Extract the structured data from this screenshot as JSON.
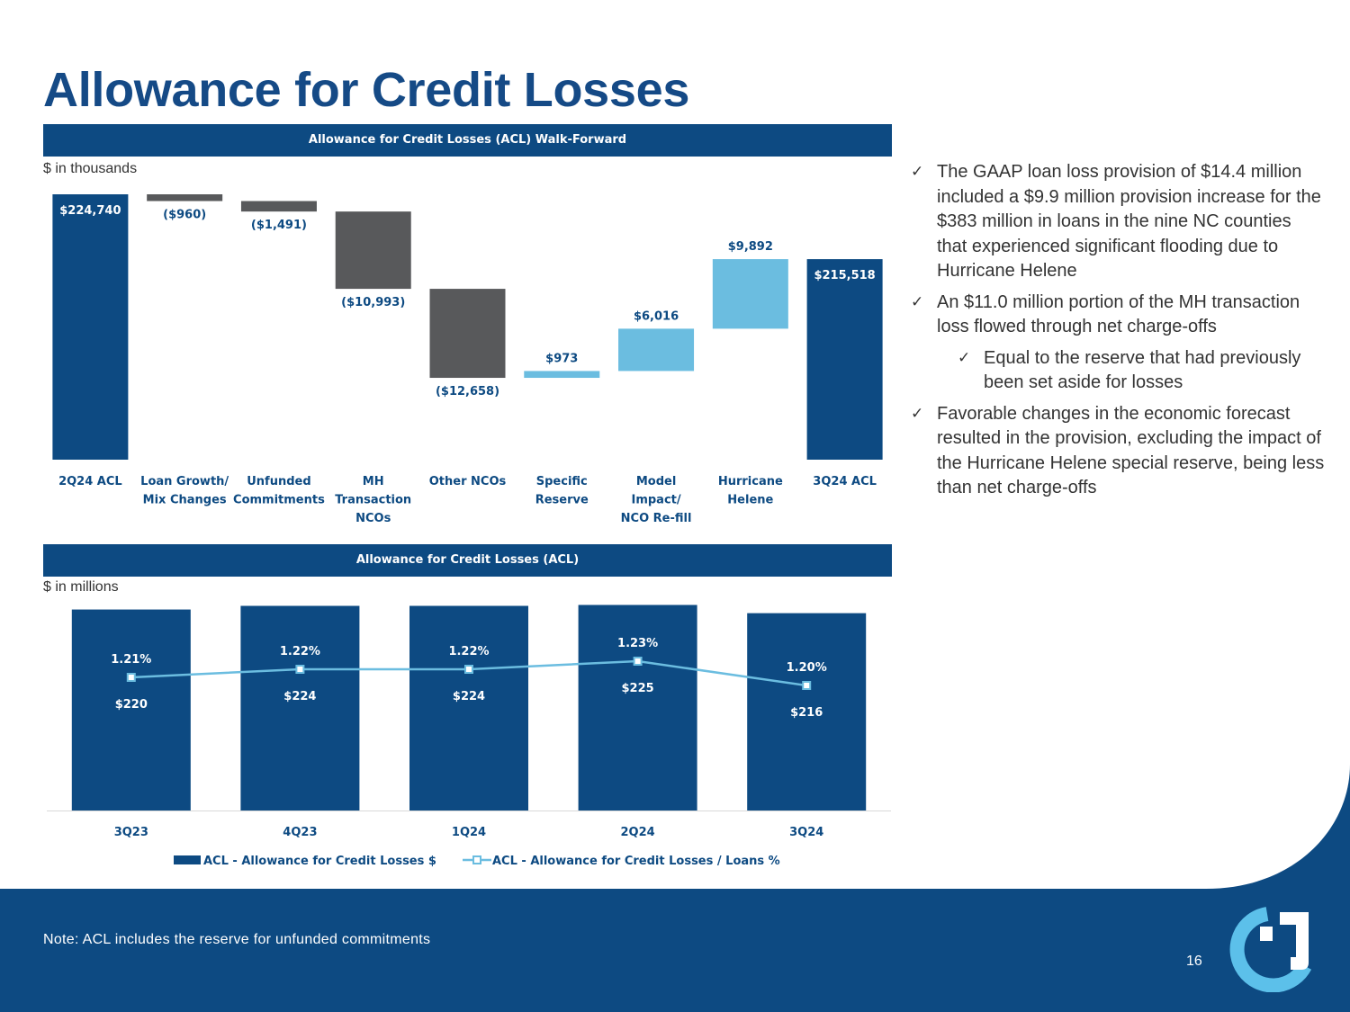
{
  "page": {
    "title": "Allowance for Credit Losses",
    "note": "Note: ACL includes the reserve for unfunded commitments",
    "page_number": "16"
  },
  "bullets": [
    {
      "level": 1,
      "text": "The GAAP loan loss provision of $14.4 million included a $9.9 million provision increase for the $383 million in loans in the nine NC counties that experienced significant flooding due to Hurricane Helene"
    },
    {
      "level": 1,
      "text": "An $11.0 million portion of the MH transaction loss flowed through net charge-offs"
    },
    {
      "level": 2,
      "text": "Equal to the reserve that had previously been set aside for losses"
    },
    {
      "level": 1,
      "text": "Favorable changes in the economic forecast resulted in the provision, excluding the impact of the Hurricane Helene special reserve, being less than net charge-offs"
    }
  ],
  "colors": {
    "brand_navy": "#0d4a82",
    "negative_gray": "#58595b",
    "positive_light_blue": "#6bbde0",
    "line_light_blue": "#6bbde0",
    "logo_cyan": "#5cc0ea"
  },
  "icons": {
    "bullet": "checkmark-icon",
    "logo": "company-logo"
  },
  "chart_data": [
    {
      "type": "waterfall",
      "title": "Allowance for Credit Losses (ACL) Walk-Forward",
      "units_label": "$ in thousands",
      "categories": [
        "2Q24 ACL",
        "Loan Growth/ Mix Changes",
        "Unfunded Commitments",
        "MH Transaction NCOs",
        "Other NCOs",
        "Specific Reserve",
        "Model Impact/ NCO Re-fill",
        "Hurricane Helene",
        "3Q24 ACL"
      ],
      "values": [
        224740,
        -960,
        -1491,
        -10993,
        -12658,
        973,
        6016,
        9892,
        215518
      ],
      "kinds": [
        "total",
        "delta",
        "delta",
        "delta",
        "delta",
        "delta",
        "delta",
        "delta",
        "total"
      ],
      "data_labels": [
        "$224,740",
        "($960)",
        "($1,491)",
        "($10,993)",
        "($12,658)",
        "$973",
        "$6,016",
        "$9,892",
        "$215,518"
      ]
    },
    {
      "type": "bar+line",
      "title": "Allowance for Credit Losses (ACL)",
      "units_label": "$ in millions",
      "categories": [
        "3Q23",
        "4Q23",
        "1Q24",
        "2Q24",
        "3Q24"
      ],
      "series": [
        {
          "name": "ACL - Allowance for Credit Losses $",
          "type": "bar",
          "values": [
            220,
            224,
            224,
            225,
            216
          ],
          "labels": [
            "$220",
            "$224",
            "$224",
            "$225",
            "$216"
          ]
        },
        {
          "name": "ACL - Allowance for Credit Losses / Loans %",
          "type": "line",
          "values": [
            1.21,
            1.22,
            1.22,
            1.23,
            1.2
          ],
          "labels": [
            "1.21%",
            "1.22%",
            "1.22%",
            "1.23%",
            "1.20%"
          ]
        }
      ],
      "legend": "bottom"
    }
  ]
}
